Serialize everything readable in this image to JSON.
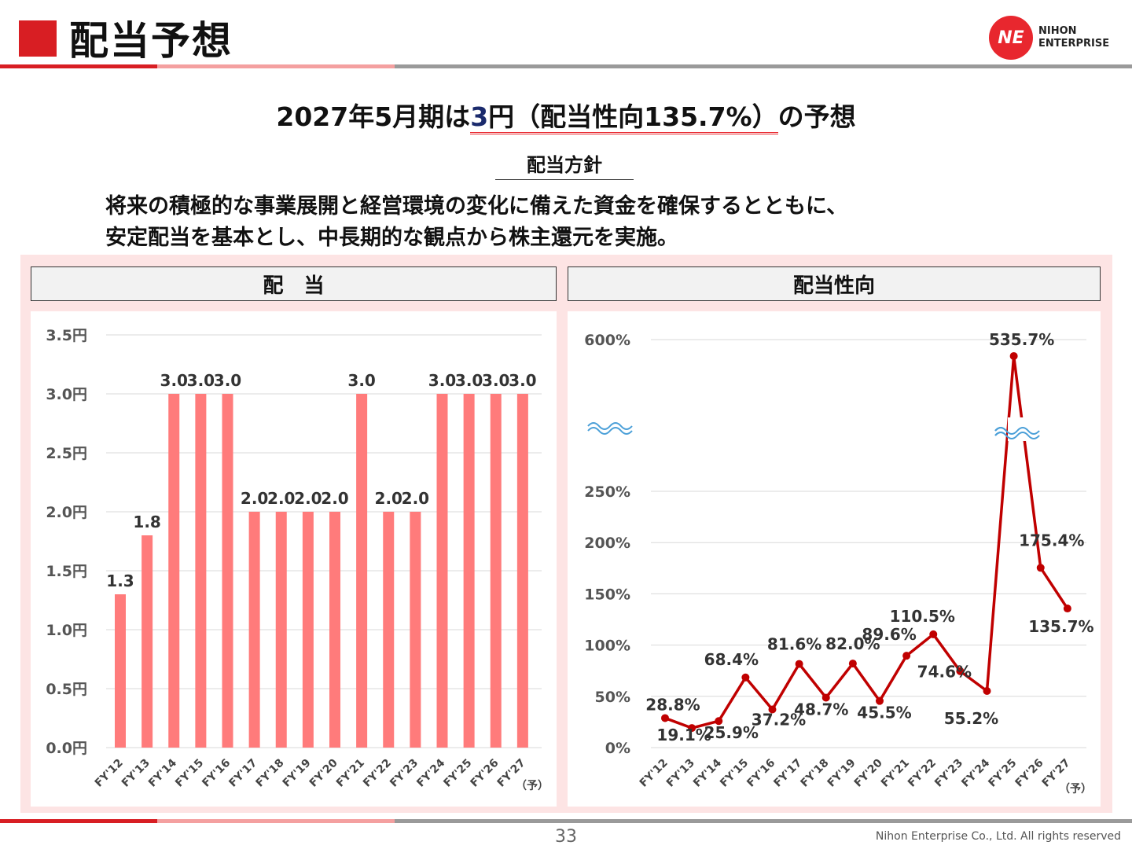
{
  "header": {
    "title": "配当予想",
    "logo_mark": "NE",
    "logo_line1": "NIHON",
    "logo_line2": "ENTERPRISE"
  },
  "headline": {
    "part1": "2027年5月期は",
    "part2": "3",
    "part3": "円（配当性向135.7%）",
    "part4": "の予想"
  },
  "policy": {
    "label": "配当方針",
    "line1": "将来の積極的な事業展開と経営環境の変化に備えた資金を確保するとともに、",
    "line2": "安定配当を基本とし、中長期的な観点から株主還元を実施。"
  },
  "colors": {
    "bar": "#ff7b7b",
    "line": "#c00000",
    "accent": "#d81e23",
    "panel_bg": "#fde4e4"
  },
  "chart_data": [
    {
      "type": "bar",
      "title": "配　当",
      "categories": [
        "FY'12",
        "FY'13",
        "FY'14",
        "FY'15",
        "FY'16",
        "FY'17",
        "FY'18",
        "FY'19",
        "FY'20",
        "FY'21",
        "FY'22",
        "FY'23",
        "FY'24",
        "FY'25",
        "FY'26",
        "FY'27"
      ],
      "values": [
        1.3,
        1.8,
        3.0,
        3.0,
        3.0,
        2.0,
        2.0,
        2.0,
        2.0,
        3.0,
        2.0,
        2.0,
        3.0,
        3.0,
        3.0,
        3.0
      ],
      "value_labels": [
        "1.3",
        "1.8",
        "3.0",
        "3.0",
        "3.0",
        "2.0",
        "2.0",
        "2.0",
        "2.0",
        "3.0",
        "2.0",
        "2.0",
        "3.0",
        "3.0",
        "3.0",
        "3.0"
      ],
      "yticks": [
        "0.0円",
        "0.5円",
        "1.0円",
        "1.5円",
        "2.0円",
        "2.5円",
        "3.0円",
        "3.5円"
      ],
      "ylim": [
        0,
        3.5
      ],
      "forecast_note": "（予）",
      "grid": true
    },
    {
      "type": "line",
      "title": "配当性向",
      "categories": [
        "FY'12",
        "FY'13",
        "FY'14",
        "FY'15",
        "FY'16",
        "FY'17",
        "FY'18",
        "FY'19",
        "FY'20",
        "FY'21",
        "FY'22",
        "FY'23",
        "FY'24",
        "FY'25",
        "FY'26",
        "FY'27"
      ],
      "values": [
        28.8,
        19.1,
        25.9,
        68.4,
        37.2,
        81.6,
        48.7,
        82.0,
        45.5,
        89.6,
        110.5,
        74.6,
        55.2,
        535.7,
        175.4,
        135.7
      ],
      "value_labels": [
        "28.8%",
        "19.1%",
        "25.9%",
        "68.4%",
        "37.2%",
        "81.6%",
        "48.7%",
        "82.0%",
        "45.5%",
        "89.6%",
        "110.5%",
        "74.6%",
        "55.2%",
        "535.7%",
        "175.4%",
        "135.7%"
      ],
      "yticks": [
        "0%",
        "50%",
        "100%",
        "150%",
        "200%",
        "250%",
        "600%"
      ],
      "axis_break": [
        250,
        600
      ],
      "forecast_note": "（予）",
      "grid": true
    }
  ],
  "footer": {
    "page": "33",
    "copyright": "Nihon Enterprise Co., Ltd. All rights reserved"
  }
}
